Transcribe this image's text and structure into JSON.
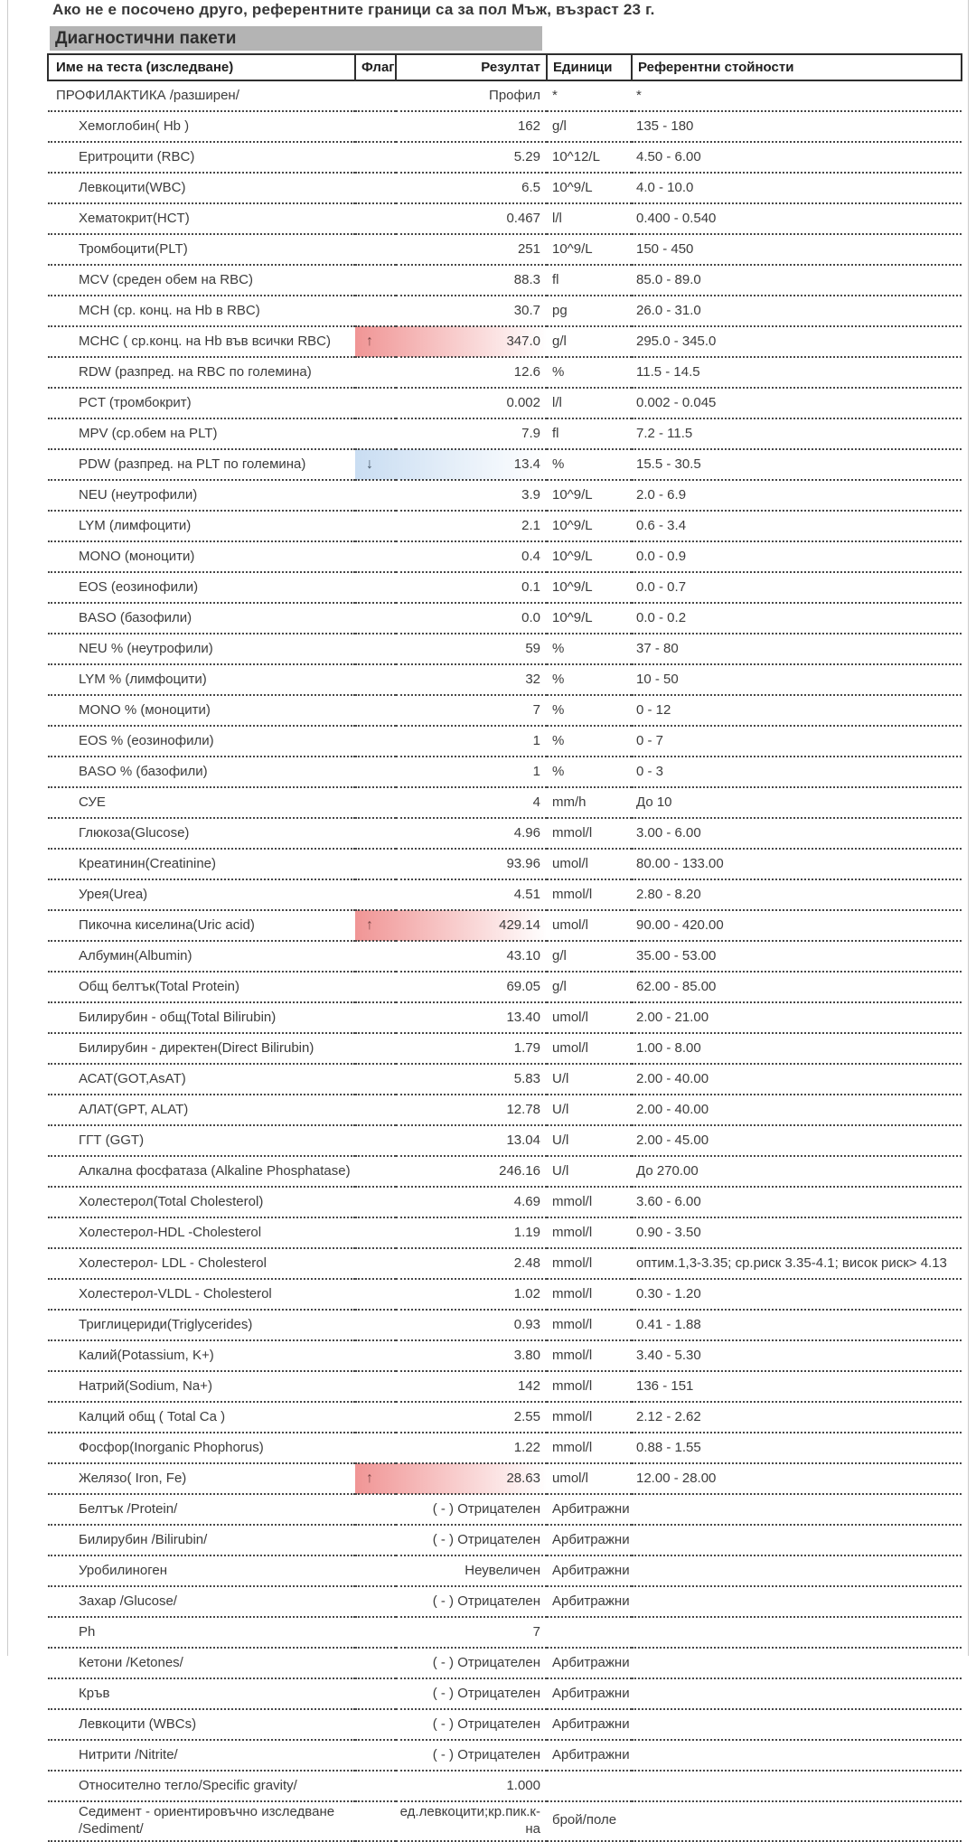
{
  "note": "Ако не е посочено друго, референтните граници са за пол Мъж, възраст 23 г.",
  "section_title": "Диагностични пакети",
  "colors": {
    "section_title_bg": "#b4b4b4",
    "high_flag": "#f09595",
    "low_flag": "#c9ddf2",
    "arrow_up": "#7a4545",
    "arrow_down": "#47586a"
  },
  "icons": {
    "up": "↑",
    "down": "↓"
  },
  "table": {
    "headers": {
      "name": "Име на теста (изследване)",
      "flag": "Флаг",
      "result": "Резултат",
      "units": "Единици",
      "reference": "Референтни стойности"
    },
    "rows": [
      {
        "name": "ПРОФИЛАКТИКА /разширен/",
        "profile": true,
        "flag": "",
        "result": "Профил",
        "units": "*",
        "ref": "*"
      },
      {
        "name": "Хемоглобин( Hb )",
        "flag": "",
        "result": "162",
        "units": "g/l",
        "ref": "135 - 180"
      },
      {
        "name": "Еритроцити (RBC)",
        "flag": "",
        "result": "5.29",
        "units": "10^12/L",
        "ref": "4.50 - 6.00"
      },
      {
        "name": "Левкоцити(WBC)",
        "flag": "",
        "result": "6.5",
        "units": "10^9/L",
        "ref": "4.0 - 10.0"
      },
      {
        "name": "Хематокрит(HCT)",
        "flag": "",
        "result": "0.467",
        "units": "l/l",
        "ref": "0.400 - 0.540"
      },
      {
        "name": "Тромбоцити(PLT)",
        "flag": "",
        "result": "251",
        "units": "10^9/L",
        "ref": "150 - 450"
      },
      {
        "name": "MCV (среден обем на RBC)",
        "flag": "",
        "result": "88.3",
        "units": "fl",
        "ref": "85.0 - 89.0"
      },
      {
        "name": "MCH (ср. конц. на Hb в RBC)",
        "flag": "",
        "result": "30.7",
        "units": "pg",
        "ref": "26.0 - 31.0"
      },
      {
        "name": "MCHC ( ср.конц. на Hb във всички RBC)",
        "flag": "up",
        "result": "347.0",
        "units": "g/l",
        "ref": "295.0 - 345.0"
      },
      {
        "name": "RDW (разпред. на RBC по големина)",
        "flag": "",
        "result": "12.6",
        "units": "%",
        "ref": "11.5 - 14.5"
      },
      {
        "name": "PCT (тромбокрит)",
        "flag": "",
        "result": "0.002",
        "units": "l/l",
        "ref": "0.002 - 0.045"
      },
      {
        "name": "MPV (ср.обем на PLT)",
        "flag": "",
        "result": "7.9",
        "units": "fl",
        "ref": "7.2 - 11.5"
      },
      {
        "name": "PDW (разпред. на PLT по големина)",
        "flag": "down",
        "result": "13.4",
        "units": "%",
        "ref": "15.5 - 30.5"
      },
      {
        "name": "NEU (неутрофили)",
        "flag": "",
        "result": "3.9",
        "units": "10^9/L",
        "ref": "2.0 - 6.9"
      },
      {
        "name": "LYM (лимфоцити)",
        "flag": "",
        "result": "2.1",
        "units": "10^9/L",
        "ref": "0.6 - 3.4"
      },
      {
        "name": "MONO (моноцити)",
        "flag": "",
        "result": "0.4",
        "units": "10^9/L",
        "ref": "0.0 - 0.9"
      },
      {
        "name": "EOS (еозинофили)",
        "flag": "",
        "result": "0.1",
        "units": "10^9/L",
        "ref": "0.0 - 0.7"
      },
      {
        "name": "BASO (базофили)",
        "flag": "",
        "result": "0.0",
        "units": "10^9/L",
        "ref": "0.0 - 0.2"
      },
      {
        "name": "NEU % (неутрофили)",
        "flag": "",
        "result": "59",
        "units": "%",
        "ref": "37 - 80"
      },
      {
        "name": "LYM % (лимфоцити)",
        "flag": "",
        "result": "32",
        "units": "%",
        "ref": "10 - 50"
      },
      {
        "name": "MONO % (моноцити)",
        "flag": "",
        "result": "7",
        "units": "%",
        "ref": "0 - 12"
      },
      {
        "name": "EOS % (еозинофили)",
        "flag": "",
        "result": "1",
        "units": "%",
        "ref": "0 - 7"
      },
      {
        "name": "BASO % (базофили)",
        "flag": "",
        "result": "1",
        "units": "%",
        "ref": "0 - 3"
      },
      {
        "name": "СУЕ",
        "flag": "",
        "result": "4",
        "units": "mm/h",
        "ref": "До 10"
      },
      {
        "name": "Глюкоза(Glucose)",
        "flag": "",
        "result": "4.96",
        "units": "mmol/l",
        "ref": "3.00 - 6.00"
      },
      {
        "name": "Креатинин(Creatinine)",
        "flag": "",
        "result": "93.96",
        "units": "umol/l",
        "ref": "80.00 - 133.00"
      },
      {
        "name": "Урея(Urea)",
        "flag": "",
        "result": "4.51",
        "units": "mmol/l",
        "ref": "2.80 - 8.20"
      },
      {
        "name": "Пикочна киселина(Uric acid)",
        "flag": "up",
        "result": "429.14",
        "units": "umol/l",
        "ref": "90.00 - 420.00"
      },
      {
        "name": "Албумин(Albumin)",
        "flag": "",
        "result": "43.10",
        "units": "g/l",
        "ref": "35.00 - 53.00"
      },
      {
        "name": "Общ белтък(Total Protein)",
        "flag": "",
        "result": "69.05",
        "units": "g/l",
        "ref": "62.00 - 85.00"
      },
      {
        "name": "Билирубин - общ(Total Bilirubin)",
        "flag": "",
        "result": "13.40",
        "units": "umol/l",
        "ref": "2.00 - 21.00"
      },
      {
        "name": "Билирубин - директен(Direct Bilirubin)",
        "flag": "",
        "result": "1.79",
        "units": "umol/l",
        "ref": "1.00 - 8.00"
      },
      {
        "name": "АСАТ(GOT,AsAT)",
        "flag": "",
        "result": "5.83",
        "units": "U/l",
        "ref": "2.00 - 40.00"
      },
      {
        "name": "АЛАТ(GPT, ALAT)",
        "flag": "",
        "result": "12.78",
        "units": "U/l",
        "ref": "2.00 - 40.00"
      },
      {
        "name": "ГГТ (GGT)",
        "flag": "",
        "result": "13.04",
        "units": "U/l",
        "ref": "2.00 - 45.00"
      },
      {
        "name": "Алкална фосфатаза (Alkaline Phosphatase)",
        "flag": "",
        "result": "246.16",
        "units": "U/l",
        "ref": "До 270.00"
      },
      {
        "name": "Холестерол(Total Cholesterol)",
        "flag": "",
        "result": "4.69",
        "units": "mmol/l",
        "ref": "3.60 - 6.00"
      },
      {
        "name": "Холестерол-HDL -Cholesterol",
        "flag": "",
        "result": "1.19",
        "units": "mmol/l",
        "ref": "0.90 - 3.50"
      },
      {
        "name": "Холестерол- LDL - Cholesterol",
        "flag": "",
        "result": "2.48",
        "units": "mmol/l",
        "ref": "оптим.1,3-3.35; ср.риск 3.35-4.1; висок риск> 4.13"
      },
      {
        "name": "Холестерол-VLDL - Cholesterol",
        "flag": "",
        "result": "1.02",
        "units": "mmol/l",
        "ref": "0.30 - 1.20"
      },
      {
        "name": "Триглицериди(Triglycerides)",
        "flag": "",
        "result": "0.93",
        "units": "mmol/l",
        "ref": "0.41 - 1.88"
      },
      {
        "name": "Калий(Potassium, K+)",
        "flag": "",
        "result": "3.80",
        "units": "mmol/l",
        "ref": "3.40 - 5.30"
      },
      {
        "name": "Натрий(Sodium, Na+)",
        "flag": "",
        "result": "142",
        "units": "mmol/l",
        "ref": "136 - 151"
      },
      {
        "name": "Калций общ ( Total Ca )",
        "flag": "",
        "result": "2.55",
        "units": "mmol/l",
        "ref": "2.12 - 2.62"
      },
      {
        "name": "Фосфор(Inorganic Phophorus)",
        "flag": "",
        "result": "1.22",
        "units": "mmol/l",
        "ref": "0.88 - 1.55"
      },
      {
        "name": "Желязо( Iron, Fe)",
        "flag": "up",
        "result": "28.63",
        "units": "umol/l",
        "ref": "12.00 - 28.00"
      },
      {
        "name": "Белтък /Protein/",
        "flag": "",
        "result": "( - ) Отрицателен",
        "units": "Арбитражни",
        "ref": ""
      },
      {
        "name": "Билирубин /Bilirubin/",
        "flag": "",
        "result": "( - ) Отрицателен",
        "units": "Арбитражни",
        "ref": ""
      },
      {
        "name": "Уробилиноген",
        "flag": "",
        "result": "Неувеличен",
        "units": "Арбитражни",
        "ref": ""
      },
      {
        "name": "Захар /Glucose/",
        "flag": "",
        "result": "( - ) Отрицателен",
        "units": "Арбитражни",
        "ref": ""
      },
      {
        "name": "Ph",
        "flag": "",
        "result": "7",
        "units": "",
        "ref": ""
      },
      {
        "name": "Кетони /Ketones/",
        "flag": "",
        "result": "( - ) Отрицателен",
        "units": "Арбитражни",
        "ref": ""
      },
      {
        "name": "Кръв",
        "flag": "",
        "result": "( - ) Отрицателен",
        "units": "Арбитражни",
        "ref": ""
      },
      {
        "name": "Левкоцити (WBCs)",
        "flag": "",
        "result": "( - ) Отрицателен",
        "units": "Арбитражни",
        "ref": ""
      },
      {
        "name": "Нитрити /Nitrite/",
        "flag": "",
        "result": "( - ) Отрицателен",
        "units": "Арбитражни",
        "ref": ""
      },
      {
        "name": "Относително тегло/Specific gravity/",
        "flag": "",
        "result": "1.000",
        "units": "",
        "ref": ""
      },
      {
        "name": "Седимент - ориентировъчно изследване /Sediment/",
        "flag": "",
        "result": "ед.левкоцити;кр.пик.к-на",
        "units": "брой/поле",
        "ref": ""
      }
    ]
  }
}
